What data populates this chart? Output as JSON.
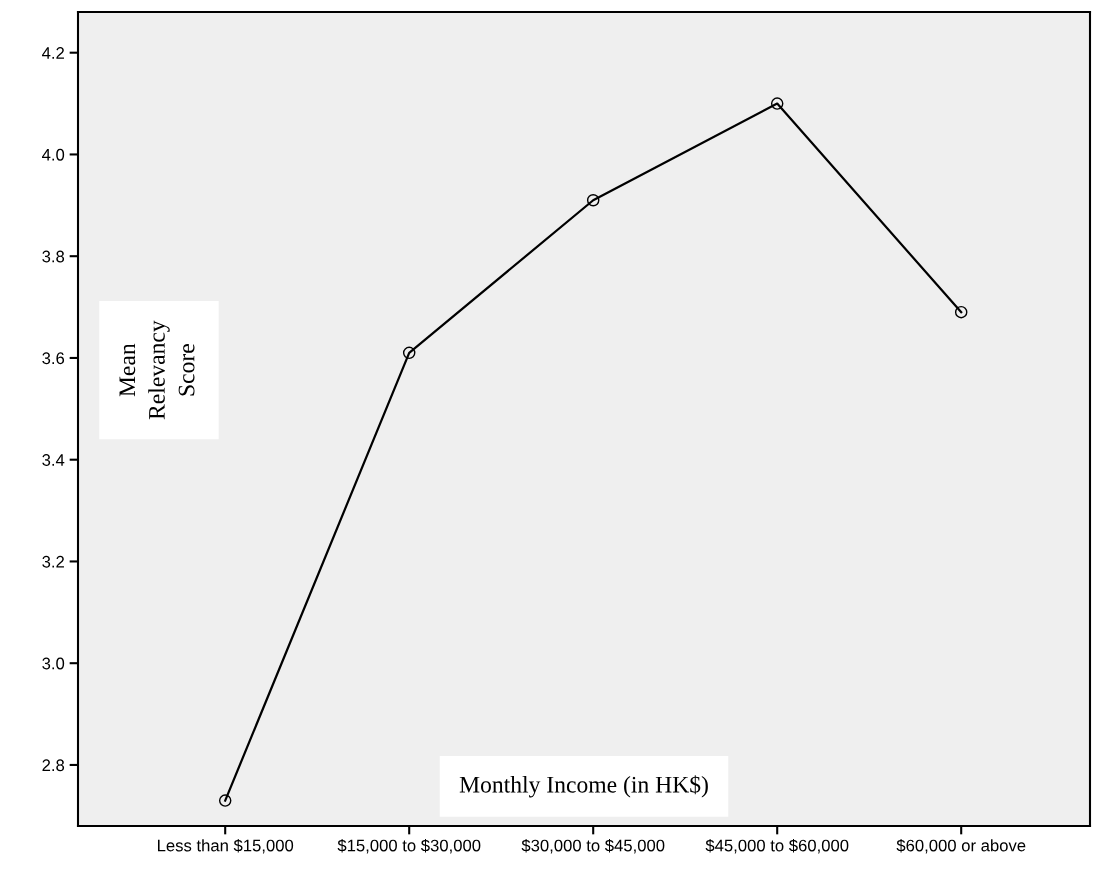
{
  "chart_data": {
    "type": "line",
    "xlabel": "Monthly Income (in HK$)",
    "ylabel": "Mean Relevancy Score",
    "categories": [
      "Less than $15,000",
      "$15,000 to $30,000",
      "$30,000 to $45,000",
      "$45,000 to $60,000",
      "$60,000 or above"
    ],
    "series": [
      {
        "color": "#000000",
        "values": [
          2.73,
          3.61,
          3.91,
          4.1,
          3.69
        ]
      }
    ],
    "ylim": [
      2.68,
      4.28
    ],
    "yticks": [
      2.8,
      {
        "value": 3,
        "label": "3.0"
      },
      3.2,
      3.4,
      3.6,
      3.8,
      {
        "value": 4,
        "label": "4.0"
      },
      4.2
    ],
    "grid": false,
    "legend": false,
    "marker": "circle",
    "line_style": "solid"
  }
}
